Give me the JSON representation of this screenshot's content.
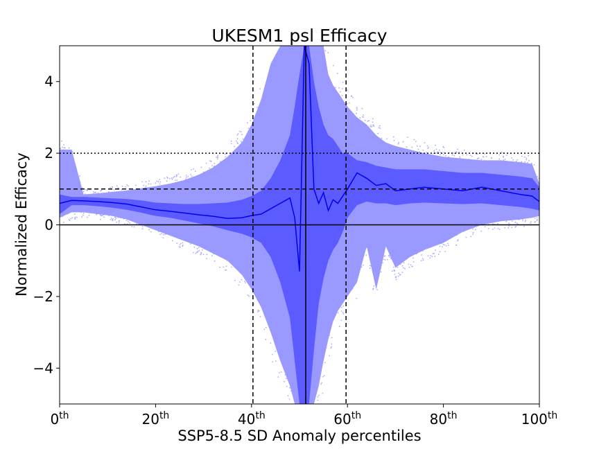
{
  "chart_data": {
    "type": "area",
    "title": "UKESM1 psl Efficacy",
    "xlabel": "SSP5-8.5 SD Anomaly percentiles",
    "ylabel": "Normalized Efficacy",
    "xlim": [
      0,
      100
    ],
    "ylim": [
      -5,
      5
    ],
    "x_ticks": [
      {
        "value": 0,
        "base": "0",
        "sup": "th"
      },
      {
        "value": 20,
        "base": "20",
        "sup": "th"
      },
      {
        "value": 40,
        "base": "40",
        "sup": "th"
      },
      {
        "value": 60,
        "base": "60",
        "sup": "th"
      },
      {
        "value": 80,
        "base": "80",
        "sup": "th"
      },
      {
        "value": 100,
        "base": "100",
        "sup": "th"
      }
    ],
    "y_ticks": [
      {
        "value": 4,
        "label": "4"
      },
      {
        "value": 2,
        "label": "2"
      },
      {
        "value": 0,
        "label": "0"
      },
      {
        "value": -2,
        "label": "−2"
      },
      {
        "value": -4,
        "label": "−4"
      }
    ],
    "grid": false,
    "legend": "none",
    "colors": {
      "outer_band": "#9999ff",
      "inner_band": "#5b5bff",
      "median": "#0000ee",
      "scatter": "#a9a9ff",
      "reference": "#000000"
    },
    "reference_lines": {
      "horizontal": [
        {
          "y": 0,
          "style": "solid"
        },
        {
          "y": 1,
          "style": "dashed"
        },
        {
          "y": 2,
          "style": "dotted"
        }
      ],
      "vertical": [
        {
          "x": 40.3,
          "style": "dashed"
        },
        {
          "x": 51.3,
          "style": "solid"
        },
        {
          "x": 59.7,
          "style": "dashed"
        }
      ]
    },
    "x": [
      0,
      2.5,
      5,
      8,
      11,
      14,
      17,
      20,
      23,
      26,
      29,
      32,
      35,
      38,
      40,
      42,
      44,
      46,
      48,
      49,
      50,
      51,
      52,
      53,
      54,
      55,
      56,
      57,
      58,
      59,
      60,
      62,
      64,
      66,
      68,
      70,
      73,
      76,
      80,
      84,
      88,
      92,
      96,
      98.5,
      100
    ],
    "median": [
      0.6,
      0.68,
      0.67,
      0.65,
      0.62,
      0.58,
      0.5,
      0.42,
      0.38,
      0.33,
      0.28,
      0.24,
      0.18,
      0.2,
      0.26,
      0.3,
      0.45,
      0.6,
      0.75,
      0.2,
      -1.3,
      5,
      4.5,
      1,
      0.6,
      0.9,
      0.4,
      0.7,
      0.6,
      0.8,
      1.0,
      1.45,
      1.3,
      1.1,
      1.15,
      0.95,
      1.0,
      1.05,
      1.0,
      0.95,
      1.05,
      0.95,
      0.85,
      0.8,
      0.65
    ],
    "inner_band": {
      "lower": [
        0.3,
        0.55,
        0.55,
        0.52,
        0.48,
        0.42,
        0.34,
        0.25,
        0.2,
        0.12,
        0.04,
        -0.04,
        -0.15,
        -0.25,
        -0.35,
        -0.5,
        -0.9,
        -1.6,
        -2.6,
        -3.8,
        -5,
        -5,
        -5,
        -3.5,
        -2.2,
        -1.5,
        -1.0,
        -0.7,
        -0.5,
        -0.2,
        0.2,
        0.55,
        0.65,
        0.6,
        0.6,
        0.55,
        0.6,
        0.62,
        0.6,
        0.58,
        0.6,
        0.55,
        0.5,
        0.45,
        0.4
      ],
      "upper": [
        0.85,
        0.78,
        0.78,
        0.76,
        0.74,
        0.72,
        0.68,
        0.62,
        0.6,
        0.58,
        0.58,
        0.6,
        0.62,
        0.7,
        0.8,
        0.95,
        1.3,
        1.8,
        2.5,
        3.3,
        4.2,
        5,
        5,
        4.0,
        3.3,
        2.8,
        2.5,
        2.4,
        2.2,
        2.0,
        2.0,
        1.8,
        1.75,
        1.65,
        1.6,
        1.55,
        1.55,
        1.55,
        1.5,
        1.45,
        1.45,
        1.4,
        1.35,
        1.3,
        1.05
      ]
    },
    "outer_band": {
      "lower": [
        0.2,
        0.35,
        0.35,
        0.3,
        0.25,
        0.15,
        0.0,
        -0.15,
        -0.3,
        -0.45,
        -0.6,
        -0.8,
        -1.0,
        -1.4,
        -1.8,
        -2.3,
        -3.0,
        -3.8,
        -4.5,
        -5,
        -5,
        -5,
        -5,
        -5,
        -4.5,
        -3.8,
        -3.2,
        -2.7,
        -2.4,
        -2.2,
        -2.0,
        -1.6,
        -0.6,
        -1.8,
        -0.6,
        -1.2,
        -0.9,
        -0.7,
        -0.5,
        -0.2,
        0.0,
        0.1,
        0.15,
        0.2,
        0.25
      ],
      "upper": [
        2.1,
        2.1,
        0.85,
        0.88,
        0.92,
        0.96,
        1.02,
        1.08,
        1.15,
        1.25,
        1.4,
        1.6,
        1.9,
        2.3,
        2.8,
        3.5,
        4.5,
        5,
        5,
        5,
        5,
        5,
        5,
        5,
        5,
        5,
        4.2,
        3.9,
        3.7,
        3.5,
        3.3,
        3.0,
        2.8,
        2.5,
        2.3,
        2.2,
        2.1,
        2.0,
        1.9,
        1.85,
        1.8,
        1.8,
        1.75,
        1.7,
        1.15
      ]
    }
  }
}
